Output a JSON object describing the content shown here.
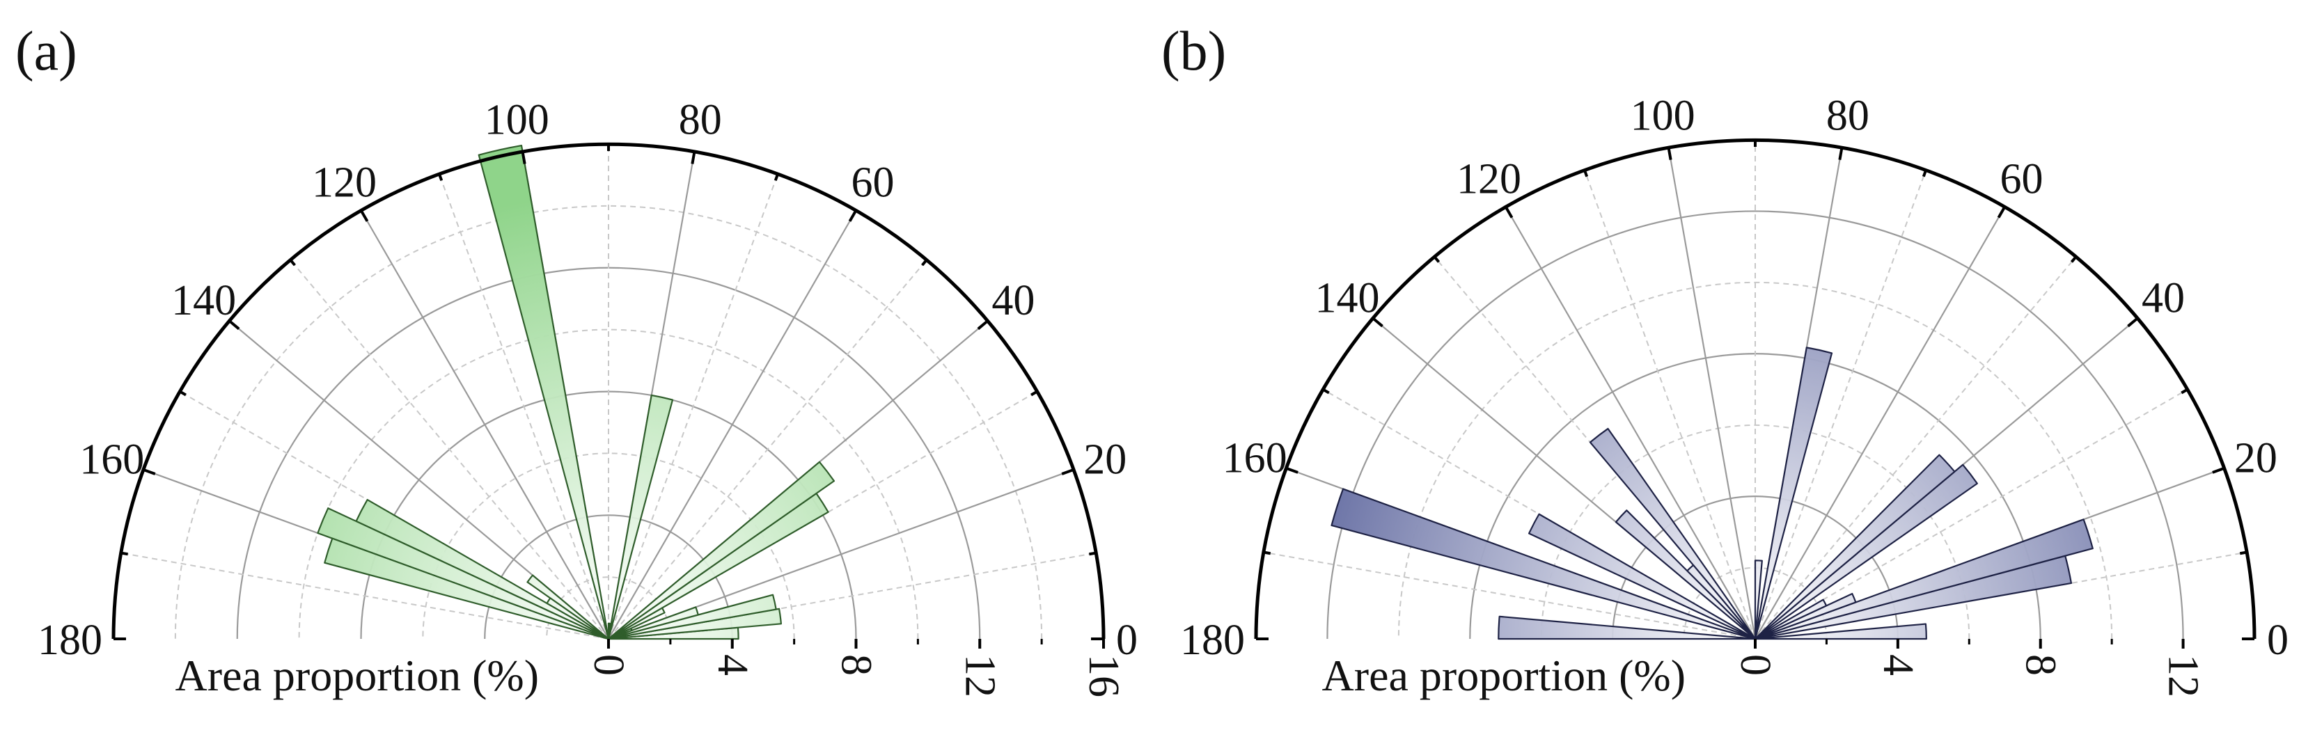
{
  "chart_data": [
    {
      "type": "polar-bar",
      "panel_label": "(a)",
      "radial_axis_label": "Area proportion (%)",
      "theta_ticks": [
        0,
        20,
        40,
        60,
        80,
        100,
        120,
        140,
        160,
        180
      ],
      "theta_range_deg": [
        0,
        180
      ],
      "r_max": 16,
      "r_ticks": [
        0,
        4,
        8,
        12,
        16
      ],
      "grid": true,
      "bar_width_deg": 5,
      "fill_color": "#8fd48a",
      "edge_color": "#2f5d2b",
      "x": [
        2.5,
        7.5,
        12.5,
        17.5,
        22.5,
        27.5,
        32.5,
        37.5,
        42.5,
        47.5,
        52.5,
        57.5,
        62.5,
        67.5,
        72.5,
        77.5,
        82.5,
        87.5,
        92.5,
        97.5,
        102.5,
        107.5,
        112.5,
        117.5,
        122.5,
        127.5,
        132.5,
        137.5,
        142.5,
        147.5,
        152.5,
        157.5,
        162.5,
        167.5,
        172.5,
        177.5
      ],
      "values": [
        4.2,
        5.6,
        5.5,
        3.0,
        0.8,
        2.0,
        8.2,
        8.9,
        0,
        0,
        0,
        0,
        0,
        0,
        0,
        8.0,
        0.0,
        0.5,
        0,
        0,
        16.2,
        0,
        0,
        0,
        0,
        0,
        0,
        0.0,
        3.2,
        2.3,
        9.0,
        10.0,
        9.5,
        0,
        0,
        0
      ]
    },
    {
      "type": "polar-bar",
      "panel_label": "(b)",
      "radial_axis_label": "Area proportion (%)",
      "theta_ticks": [
        0,
        20,
        40,
        60,
        80,
        100,
        120,
        140,
        160,
        180
      ],
      "theta_range_deg": [
        0,
        180
      ],
      "r_max": 14,
      "r_ticks": [
        0,
        4,
        8,
        12
      ],
      "grid": true,
      "bar_width_deg": 5,
      "fill_color": "#6b73a6",
      "edge_color": "#1e2245",
      "x": [
        2.5,
        7.5,
        12.5,
        17.5,
        22.5,
        27.5,
        32.5,
        37.5,
        42.5,
        47.5,
        52.5,
        57.5,
        62.5,
        67.5,
        72.5,
        77.5,
        82.5,
        87.5,
        92.5,
        97.5,
        102.5,
        107.5,
        112.5,
        117.5,
        122.5,
        127.5,
        132.5,
        137.5,
        142.5,
        147.5,
        152.5,
        157.5,
        162.5,
        167.5,
        172.5,
        177.5
      ],
      "values": [
        4.8,
        0,
        9.0,
        9.8,
        3.0,
        2.2,
        0,
        7.6,
        7.3,
        0,
        0,
        0,
        0,
        0,
        0,
        8.3,
        0,
        2.2,
        0,
        0,
        0,
        0,
        0,
        0,
        0,
        7.2,
        2.7,
        5.1,
        0,
        0,
        7.0,
        0,
        12.3,
        0,
        0,
        7.2
      ]
    }
  ]
}
